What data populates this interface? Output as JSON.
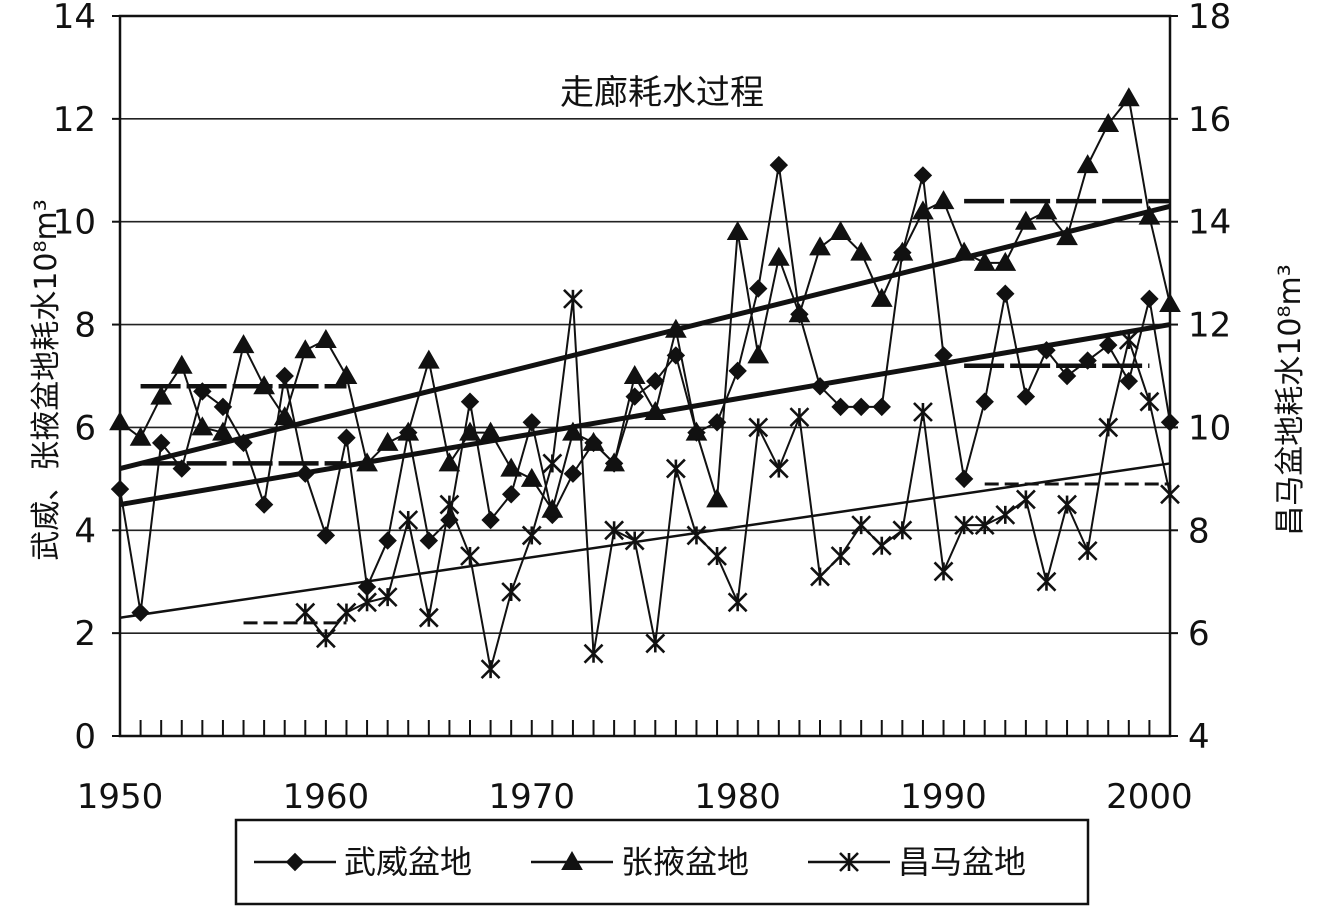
{
  "chart_data": {
    "type": "line",
    "title": "走廊耗水过程",
    "xlabel": "",
    "ylabel_left": "武威、张掖盆地耗水10⁸m³",
    "ylabel_right": "昌马盆地耗水10⁸m³",
    "xlim": [
      1950,
      2001
    ],
    "ylim_left": [
      0,
      14
    ],
    "ylim_right": [
      4,
      18
    ],
    "x_ticks": [
      "1950",
      "1960",
      "1970",
      "1980",
      "1990",
      "2000"
    ],
    "y_ticks_left": [
      "0",
      "2",
      "4",
      "6",
      "8",
      "10",
      "12",
      "14"
    ],
    "y_ticks_right": [
      "4",
      "6",
      "8",
      "10",
      "12",
      "14",
      "16",
      "18"
    ],
    "grid": true,
    "legend_position": "bottom",
    "series": [
      {
        "name": "武威盆地",
        "marker": "diamond",
        "axis": "left",
        "x": [
          1950,
          1951,
          1952,
          1953,
          1954,
          1955,
          1956,
          1957,
          1958,
          1959,
          1960,
          1961,
          1962,
          1963,
          1964,
          1965,
          1966,
          1967,
          1968,
          1969,
          1970,
          1971,
          1972,
          1973,
          1974,
          1975,
          1976,
          1977,
          1978,
          1979,
          1980,
          1981,
          1982,
          1983,
          1984,
          1985,
          1986,
          1987,
          1988,
          1989,
          1990,
          1991,
          1992,
          1993,
          1994,
          1995,
          1996,
          1997,
          1998,
          1999,
          2000,
          2001
        ],
        "values": [
          4.8,
          2.4,
          5.7,
          5.2,
          6.7,
          6.4,
          5.7,
          4.5,
          7.0,
          5.1,
          3.9,
          5.8,
          2.9,
          3.8,
          5.9,
          3.8,
          4.2,
          6.5,
          4.2,
          4.7,
          6.1,
          4.3,
          5.1,
          5.7,
          5.3,
          6.6,
          6.9,
          7.4,
          5.9,
          6.1,
          7.1,
          8.7,
          11.1,
          8.2,
          6.8,
          6.4,
          6.4,
          6.4,
          9.4,
          10.9,
          7.4,
          5.0,
          6.5,
          8.6,
          6.6,
          7.5,
          7.0,
          7.3,
          7.6,
          6.9,
          8.5,
          6.1
        ]
      },
      {
        "name": "张掖盆地",
        "marker": "triangle",
        "axis": "left",
        "x": [
          1950,
          1951,
          1952,
          1953,
          1954,
          1955,
          1956,
          1957,
          1958,
          1959,
          1960,
          1961,
          1962,
          1963,
          1964,
          1965,
          1966,
          1967,
          1968,
          1969,
          1970,
          1971,
          1972,
          1973,
          1974,
          1975,
          1976,
          1977,
          1978,
          1979,
          1980,
          1981,
          1982,
          1983,
          1984,
          1985,
          1986,
          1987,
          1988,
          1989,
          1990,
          1991,
          1992,
          1993,
          1994,
          1995,
          1996,
          1997,
          1998,
          1999,
          2000,
          2001
        ],
        "values": [
          6.1,
          5.8,
          6.6,
          7.2,
          6.0,
          5.9,
          7.6,
          6.8,
          6.2,
          7.5,
          7.7,
          7.0,
          5.3,
          5.7,
          5.9,
          7.3,
          5.3,
          5.9,
          5.9,
          5.2,
          5.0,
          4.4,
          5.9,
          5.7,
          5.3,
          7.0,
          6.3,
          7.9,
          5.9,
          4.6,
          9.8,
          7.4,
          9.3,
          8.2,
          9.5,
          9.8,
          9.4,
          8.5,
          9.4,
          10.2,
          10.4,
          9.4,
          9.2,
          9.2,
          10.0,
          10.2,
          9.7,
          11.1,
          11.9,
          12.4,
          10.1,
          8.4
        ]
      },
      {
        "name": "昌马盆地",
        "marker": "asterisk",
        "axis": "right",
        "x": [
          1959,
          1960,
          1961,
          1962,
          1963,
          1964,
          1965,
          1966,
          1967,
          1968,
          1969,
          1970,
          1971,
          1972,
          1973,
          1974,
          1975,
          1976,
          1977,
          1978,
          1979,
          1980,
          1981,
          1982,
          1983,
          1984,
          1985,
          1986,
          1987,
          1988,
          1989,
          1990,
          1991,
          1992,
          1993,
          1994,
          1995,
          1996,
          1997,
          1998,
          1999,
          2000,
          2001
        ],
        "values": [
          6.4,
          5.9,
          6.4,
          6.6,
          6.7,
          8.2,
          6.3,
          8.5,
          7.5,
          5.3,
          6.8,
          7.9,
          9.3,
          12.5,
          5.6,
          8.0,
          7.8,
          5.8,
          9.2,
          7.9,
          7.5,
          6.6,
          10.0,
          9.2,
          10.2,
          7.1,
          7.5,
          8.1,
          7.7,
          8.0,
          10.3,
          7.2,
          8.1,
          8.1,
          8.3,
          8.6,
          7.0,
          8.5,
          7.6,
          10.0,
          11.7,
          10.5,
          8.7
        ]
      }
    ],
    "trend_lines": [
      {
        "series": "张掖盆地",
        "axis": "left",
        "x": [
          1950,
          2001
        ],
        "values": [
          5.2,
          10.3
        ]
      },
      {
        "series": "武威盆地",
        "axis": "left",
        "x": [
          1950,
          2001
        ],
        "values": [
          4.5,
          8.0
        ]
      },
      {
        "series": "昌马盆地",
        "axis": "right",
        "x": [
          1950,
          2001
        ],
        "values": [
          6.3,
          9.3
        ]
      }
    ],
    "period_means": [
      {
        "series": "张掖盆地",
        "axis": "left",
        "x": [
          1951,
          1961
        ],
        "value": 6.8
      },
      {
        "series": "张掖盆地",
        "axis": "left",
        "x": [
          1991,
          2001
        ],
        "value": 10.4
      },
      {
        "series": "武威盆地",
        "axis": "left",
        "x": [
          1951,
          1961
        ],
        "value": 5.3
      },
      {
        "series": "武威盆地",
        "axis": "left",
        "x": [
          1991,
          2000
        ],
        "value": 7.2
      },
      {
        "series": "昌马盆地",
        "axis": "right",
        "x": [
          1956,
          1961
        ],
        "value": 6.2
      },
      {
        "series": "昌马盆地",
        "axis": "right",
        "x": [
          1992,
          2001
        ],
        "value": 8.9
      }
    ]
  }
}
